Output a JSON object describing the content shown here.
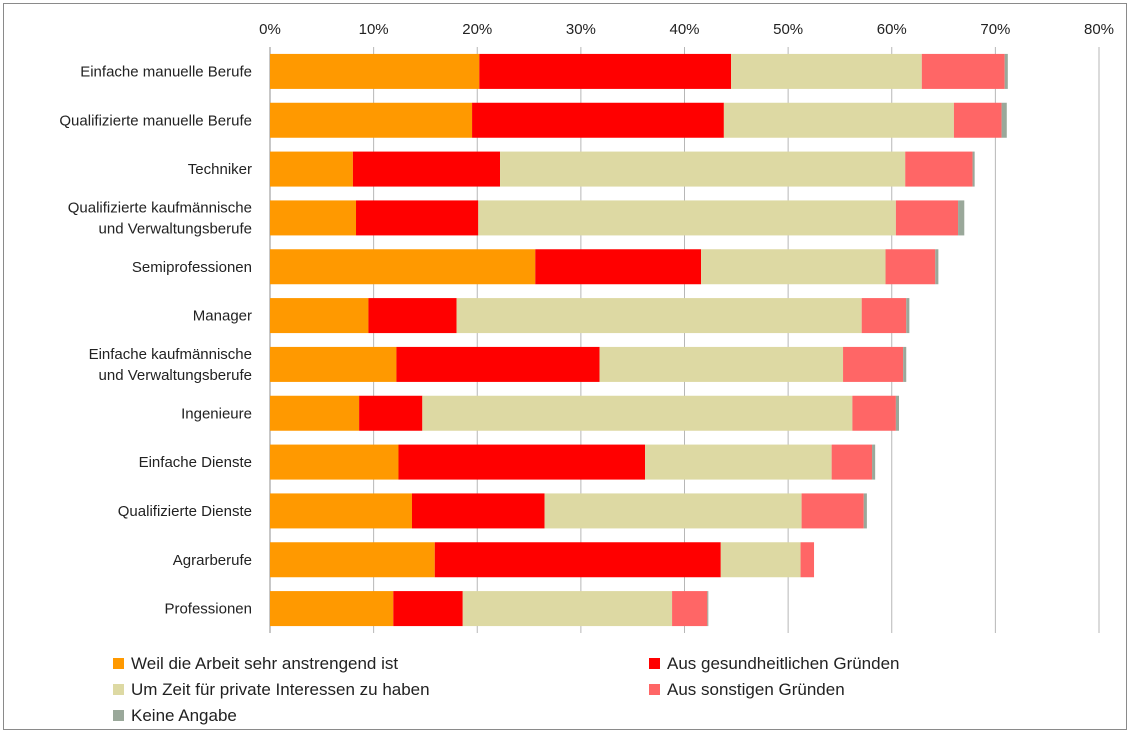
{
  "chart_data": {
    "type": "bar",
    "orientation": "horizontal",
    "stacked": true,
    "xlim": [
      0,
      80
    ],
    "x_ticks": [
      "0%",
      "10%",
      "20%",
      "30%",
      "40%",
      "50%",
      "60%",
      "70%",
      "80%"
    ],
    "grid": true,
    "legend_position": "bottom",
    "categories": [
      [
        "Einfache manuelle Berufe"
      ],
      [
        "Qualifizierte manuelle Berufe"
      ],
      [
        "Techniker"
      ],
      [
        "Qualifizierte kaufmännische",
        "und Verwaltungsberufe"
      ],
      [
        "Semiprofessionen"
      ],
      [
        "Manager"
      ],
      [
        "Einfache kaufmännische",
        "und Verwaltungsberufe"
      ],
      [
        "Ingenieure"
      ],
      [
        "Einfache Dienste"
      ],
      [
        "Qualifizierte Dienste"
      ],
      [
        "Agrarberufe"
      ],
      [
        "Professionen"
      ]
    ],
    "series": [
      {
        "name": "Weil die Arbeit sehr anstrengend ist",
        "color": "#FF9900",
        "values": [
          20.2,
          19.5,
          8.0,
          8.3,
          25.6,
          9.5,
          12.2,
          8.6,
          12.4,
          13.7,
          15.9,
          11.9
        ]
      },
      {
        "name": "Aus gesundheitlichen Gründen",
        "color": "#FF0000",
        "values": [
          24.3,
          24.3,
          14.2,
          11.8,
          16.0,
          8.5,
          19.6,
          6.1,
          23.8,
          12.8,
          27.6,
          6.7
        ]
      },
      {
        "name": "Um Zeit für private Interessen zu haben",
        "color": "#DDD9A3",
        "values": [
          18.4,
          22.2,
          39.1,
          40.3,
          17.8,
          39.1,
          23.5,
          41.5,
          18.0,
          24.8,
          7.7,
          20.2
        ]
      },
      {
        "name": "Aus sonstigen Gründen",
        "color": "#FF6666",
        "values": [
          8.0,
          4.6,
          6.5,
          6.0,
          4.8,
          4.3,
          5.8,
          4.2,
          3.9,
          6.0,
          1.3,
          3.4
        ]
      },
      {
        "name": "Keine Angabe",
        "color": "#9AA89A",
        "values": [
          0.3,
          0.5,
          0.2,
          0.6,
          0.3,
          0.3,
          0.3,
          0.3,
          0.3,
          0.3,
          0.0,
          0.1
        ]
      }
    ]
  }
}
